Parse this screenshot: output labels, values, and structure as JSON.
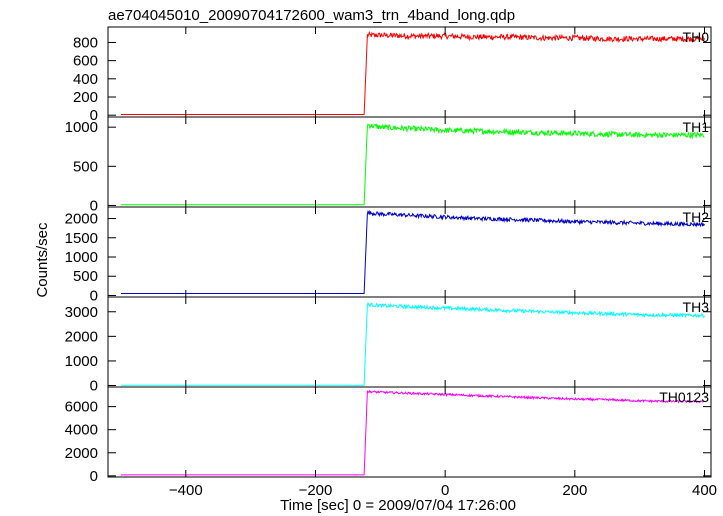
{
  "title": "ae704045010_20090704172600_wam3_trn_4band_long.qdp",
  "ylabel": "Counts/sec",
  "xlabel": "Time [sec] 0 = 2009/07/04 17:26:00",
  "chart_data": [
    {
      "type": "line",
      "series": [
        {
          "name": "TH0",
          "color": "#ff0000"
        }
      ],
      "x": [
        -500,
        -130,
        -125,
        -120,
        -100,
        -50,
        0,
        50,
        100,
        150,
        200,
        250,
        300,
        350,
        400
      ],
      "y": [
        8,
        8,
        8,
        880,
        880,
        870,
        870,
        860,
        860,
        850,
        850,
        840,
        840,
        840,
        840
      ],
      "xlim": [
        -520,
        410
      ],
      "ylim": [
        -20,
        970
      ],
      "yticks": [
        0,
        200,
        400,
        600,
        800
      ],
      "ytick_labels": [
        "0",
        "200",
        "400",
        "600",
        "800"
      ],
      "noise": 30
    },
    {
      "type": "line",
      "series": [
        {
          "name": "TH1",
          "color": "#00ff00"
        }
      ],
      "x": [
        -500,
        -130,
        -125,
        -120,
        -100,
        -50,
        0,
        50,
        100,
        150,
        200,
        250,
        300,
        350,
        400
      ],
      "y": [
        10,
        10,
        10,
        1030,
        1000,
        980,
        960,
        950,
        940,
        930,
        920,
        910,
        900,
        900,
        900
      ],
      "xlim": [
        -520,
        410
      ],
      "ylim": [
        -20,
        1130
      ],
      "yticks": [
        0,
        500,
        1000
      ],
      "ytick_labels": [
        "0",
        "500",
        "1000"
      ],
      "noise": 35
    },
    {
      "type": "line",
      "series": [
        {
          "name": "TH2",
          "color": "#0000cc"
        }
      ],
      "x": [
        -500,
        -130,
        -125,
        -120,
        -100,
        -50,
        0,
        50,
        100,
        150,
        200,
        250,
        300,
        350,
        400
      ],
      "y": [
        50,
        50,
        50,
        2150,
        2120,
        2080,
        2040,
        2000,
        1980,
        1950,
        1920,
        1900,
        1880,
        1860,
        1850
      ],
      "xlim": [
        -520,
        410
      ],
      "ylim": [
        -40,
        2300
      ],
      "yticks": [
        0,
        500,
        1000,
        1500,
        2000
      ],
      "ytick_labels": [
        "0",
        "500",
        "1000",
        "1500",
        "2000"
      ],
      "noise": 50
    },
    {
      "type": "line",
      "series": [
        {
          "name": "TH3",
          "color": "#00ffff"
        }
      ],
      "x": [
        -500,
        -130,
        -125,
        -120,
        -100,
        -50,
        0,
        50,
        100,
        150,
        200,
        250,
        300,
        350,
        400
      ],
      "y": [
        10,
        10,
        10,
        3300,
        3250,
        3200,
        3150,
        3100,
        3050,
        3000,
        2960,
        2920,
        2880,
        2860,
        2850
      ],
      "xlim": [
        -520,
        410
      ],
      "ylim": [
        -60,
        3600
      ],
      "yticks": [
        0,
        1000,
        2000,
        3000
      ],
      "ytick_labels": [
        "0",
        "1000",
        "2000",
        "3000"
      ],
      "noise": 70
    },
    {
      "type": "line",
      "series": [
        {
          "name": "TH0123",
          "color": "#ff00ff"
        }
      ],
      "x": [
        -500,
        -130,
        -125,
        -120,
        -100,
        -50,
        0,
        50,
        100,
        150,
        200,
        250,
        300,
        350,
        400
      ],
      "y": [
        80,
        80,
        80,
        7300,
        7250,
        7150,
        7050,
        6950,
        6850,
        6750,
        6650,
        6600,
        6500,
        6450,
        6450
      ],
      "xlim": [
        -520,
        410
      ],
      "ylim": [
        -100,
        7700
      ],
      "yticks": [
        0,
        2000,
        4000,
        6000
      ],
      "ytick_labels": [
        "0",
        "2000",
        "4000",
        "6000"
      ],
      "xticks": [
        -400,
        -200,
        0,
        200,
        400
      ],
      "xtick_labels": [
        "−400",
        "−200",
        "0",
        "200",
        "400"
      ],
      "noise": 90
    }
  ]
}
